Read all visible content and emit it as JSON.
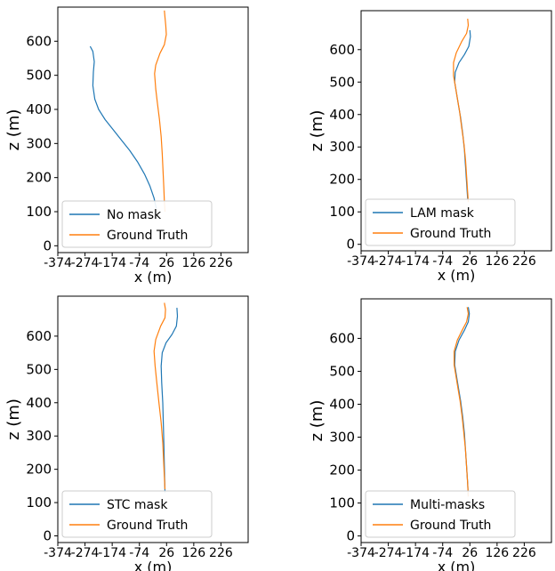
{
  "colors": {
    "series1": "#1f77b4",
    "series2": "#ff7f0e"
  },
  "chart_data": [
    {
      "type": "line",
      "xlabel": "x (m)",
      "ylabel": "z (m)",
      "xlim": [
        -374,
        326
      ],
      "ylim": [
        -20,
        700
      ],
      "xticks": [
        -374,
        -274,
        -174,
        -74,
        26,
        126,
        226
      ],
      "yticks": [
        0,
        100,
        200,
        300,
        400,
        500,
        600
      ],
      "legend_position": "lower-left",
      "series": [
        {
          "name": "No mask",
          "color": "#1f77b4",
          "x": [
            -255,
            -245,
            -240,
            -243,
            -245,
            -238,
            -224,
            -200,
            -170,
            -140,
            -110,
            -80,
            -55,
            -35,
            -20,
            -12
          ],
          "z": [
            585,
            570,
            540,
            510,
            470,
            430,
            400,
            370,
            340,
            310,
            280,
            245,
            210,
            175,
            140,
            110
          ]
        },
        {
          "name": "Ground Truth",
          "color": "#ff7f0e",
          "x": [
            18,
            20,
            23,
            25,
            18,
            2,
            -14,
            -18,
            -14,
            -8,
            0,
            6,
            10,
            13,
            16,
            18,
            20
          ],
          "z": [
            690,
            670,
            645,
            620,
            590,
            565,
            530,
            505,
            460,
            420,
            370,
            320,
            270,
            220,
            170,
            130,
            100
          ]
        }
      ]
    },
    {
      "type": "line",
      "xlabel": "x (m)",
      "ylabel": "z (m)",
      "xlim": [
        -374,
        326
      ],
      "ylim": [
        -20,
        720
      ],
      "xticks": [
        -374,
        -274,
        -174,
        -74,
        26,
        126,
        226
      ],
      "yticks": [
        0,
        100,
        200,
        300,
        400,
        500,
        600
      ],
      "legend_position": "lower-left",
      "series": [
        {
          "name": "LAM mask",
          "color": "#1f77b4",
          "x": [
            26,
            28,
            22,
            6,
            -14,
            -28,
            -30,
            -24,
            -16,
            -8,
            0,
            6,
            10,
            14,
            18
          ],
          "z": [
            660,
            640,
            610,
            585,
            560,
            530,
            500,
            470,
            430,
            390,
            340,
            290,
            240,
            190,
            140
          ]
        },
        {
          "name": "Ground Truth",
          "color": "#ff7f0e",
          "x": [
            18,
            20,
            14,
            -4,
            -24,
            -34,
            -34,
            -28,
            -20,
            -12,
            -4,
            4,
            10,
            14,
            18,
            20
          ],
          "z": [
            695,
            675,
            650,
            625,
            590,
            560,
            520,
            490,
            450,
            410,
            360,
            310,
            260,
            210,
            160,
            130
          ]
        }
      ]
    },
    {
      "type": "line",
      "xlabel": "x (m)",
      "ylabel": "z (m)",
      "xlim": [
        -374,
        326
      ],
      "ylim": [
        -20,
        720
      ],
      "xticks": [
        -374,
        -274,
        -174,
        -74,
        26,
        126,
        226
      ],
      "yticks": [
        0,
        100,
        200,
        300,
        400,
        500,
        600
      ],
      "legend_position": "lower-left",
      "series": [
        {
          "name": "STC mask",
          "color": "#1f77b4",
          "x": [
            64,
            66,
            62,
            46,
            24,
            10,
            6,
            8,
            12,
            14,
            16,
            18,
            20
          ],
          "z": [
            685,
            660,
            630,
            605,
            580,
            550,
            510,
            460,
            400,
            340,
            280,
            210,
            130
          ]
        },
        {
          "name": "Ground Truth",
          "color": "#ff7f0e",
          "x": [
            18,
            22,
            20,
            4,
            -14,
            -20,
            -16,
            -10,
            -2,
            6,
            12,
            16,
            20
          ],
          "z": [
            700,
            680,
            655,
            630,
            590,
            555,
            510,
            460,
            400,
            340,
            280,
            210,
            140
          ]
        }
      ]
    },
    {
      "type": "line",
      "xlabel": "x (m)",
      "ylabel": "z (m)",
      "xlim": [
        -374,
        326
      ],
      "ylim": [
        -20,
        720
      ],
      "xticks": [
        -374,
        -274,
        -174,
        -74,
        26,
        126,
        226
      ],
      "yticks": [
        0,
        100,
        200,
        300,
        400,
        500,
        600
      ],
      "legend_position": "lower-left",
      "series": [
        {
          "name": "Multi-masks",
          "color": "#1f77b4",
          "x": [
            20,
            24,
            20,
            6,
            -14,
            -28,
            -30,
            -24,
            -16,
            -8,
            0,
            6,
            10,
            14,
            18,
            20
          ],
          "z": [
            695,
            675,
            650,
            625,
            595,
            560,
            520,
            490,
            450,
            410,
            360,
            310,
            260,
            210,
            160,
            120
          ]
        },
        {
          "name": "Ground Truth",
          "color": "#ff7f0e",
          "x": [
            16,
            20,
            14,
            -2,
            -20,
            -32,
            -32,
            -26,
            -18,
            -10,
            -2,
            4,
            10,
            14,
            18,
            20
          ],
          "z": [
            695,
            675,
            650,
            625,
            595,
            560,
            520,
            490,
            450,
            410,
            360,
            310,
            260,
            210,
            160,
            120
          ]
        }
      ]
    }
  ]
}
